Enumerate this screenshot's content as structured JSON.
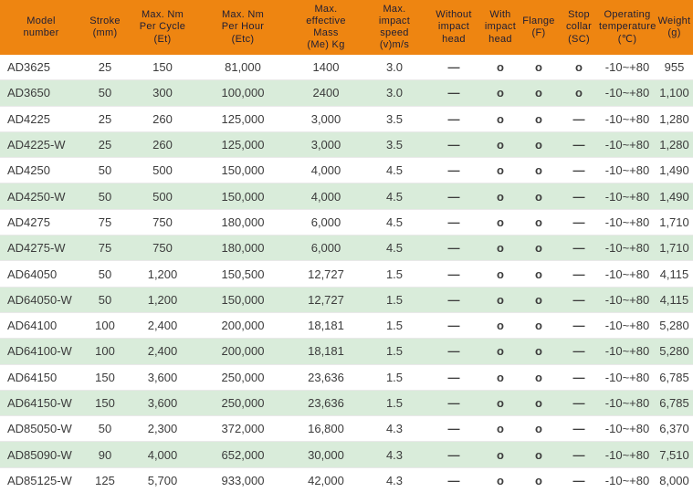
{
  "table": {
    "colors": {
      "header_bg": "#ee8511",
      "header_text": "#1d1d35",
      "row_alt_bg": "#d9ecda",
      "body_text": "#3c3c3c"
    },
    "columns": [
      {
        "id": "model",
        "label": "Model\nnumber"
      },
      {
        "id": "stroke",
        "label": "Stroke\n(mm)"
      },
      {
        "id": "cycle",
        "label": "Max. Nm\nPer Cycle\n(Et)"
      },
      {
        "id": "hour",
        "label": "Max. Nm\nPer Hour\n(Etc)"
      },
      {
        "id": "mass",
        "label": "Max.\neffective\nMass\n(Me) Kg"
      },
      {
        "id": "speed",
        "label": "Max.\nimpact\nspeed\n(v)m/s"
      },
      {
        "id": "without",
        "label": "Without\nimpact\nhead"
      },
      {
        "id": "with",
        "label": "With\nimpact\nhead"
      },
      {
        "id": "flange",
        "label": "Flange\n(F)"
      },
      {
        "id": "stop",
        "label": "Stop\ncollar\n(SC)"
      },
      {
        "id": "temp",
        "label": "Operating\ntemperature\n(℃)"
      },
      {
        "id": "weight",
        "label": "Weight\n(g)"
      }
    ],
    "rows": [
      {
        "model": "AD3625",
        "stroke": "25",
        "cycle": "150",
        "hour": "81,000",
        "mass": "1400",
        "speed": "3.0",
        "without": "—",
        "with": "o",
        "flange": "o",
        "stop": "o",
        "temp": "-10~+80",
        "weight": "955"
      },
      {
        "model": "AD3650",
        "stroke": "50",
        "cycle": "300",
        "hour": "100,000",
        "mass": "2400",
        "speed": "3.0",
        "without": "—",
        "with": "o",
        "flange": "o",
        "stop": "o",
        "temp": "-10~+80",
        "weight": "1,100"
      },
      {
        "model": "AD4225",
        "stroke": "25",
        "cycle": "260",
        "hour": "125,000",
        "mass": "3,000",
        "speed": "3.5",
        "without": "—",
        "with": "o",
        "flange": "o",
        "stop": "—",
        "temp": "-10~+80",
        "weight": "1,280"
      },
      {
        "model": "AD4225-W",
        "stroke": "25",
        "cycle": "260",
        "hour": "125,000",
        "mass": "3,000",
        "speed": "3.5",
        "without": "—",
        "with": "o",
        "flange": "o",
        "stop": "—",
        "temp": "-10~+80",
        "weight": "1,280"
      },
      {
        "model": "AD4250",
        "stroke": "50",
        "cycle": "500",
        "hour": "150,000",
        "mass": "4,000",
        "speed": "4.5",
        "without": "—",
        "with": "o",
        "flange": "o",
        "stop": "—",
        "temp": "-10~+80",
        "weight": "1,490"
      },
      {
        "model": "AD4250-W",
        "stroke": "50",
        "cycle": "500",
        "hour": "150,000",
        "mass": "4,000",
        "speed": "4.5",
        "without": "—",
        "with": "o",
        "flange": "o",
        "stop": "—",
        "temp": "-10~+80",
        "weight": "1,490"
      },
      {
        "model": "AD4275",
        "stroke": "75",
        "cycle": "750",
        "hour": "180,000",
        "mass": "6,000",
        "speed": "4.5",
        "without": "—",
        "with": "o",
        "flange": "o",
        "stop": "—",
        "temp": "-10~+80",
        "weight": "1,710"
      },
      {
        "model": "AD4275-W",
        "stroke": "75",
        "cycle": "750",
        "hour": "180,000",
        "mass": "6,000",
        "speed": "4.5",
        "without": "—",
        "with": "o",
        "flange": "o",
        "stop": "—",
        "temp": "-10~+80",
        "weight": "1,710"
      },
      {
        "model": "AD64050",
        "stroke": "50",
        "cycle": "1,200",
        "hour": "150,500",
        "mass": "12,727",
        "speed": "1.5",
        "without": "—",
        "with": "o",
        "flange": "o",
        "stop": "—",
        "temp": "-10~+80",
        "weight": "4,115"
      },
      {
        "model": "AD64050-W",
        "stroke": "50",
        "cycle": "1,200",
        "hour": "150,000",
        "mass": "12,727",
        "speed": "1.5",
        "without": "—",
        "with": "o",
        "flange": "o",
        "stop": "—",
        "temp": "-10~+80",
        "weight": "4,115"
      },
      {
        "model": "AD64100",
        "stroke": "100",
        "cycle": "2,400",
        "hour": "200,000",
        "mass": "18,181",
        "speed": "1.5",
        "without": "—",
        "with": "o",
        "flange": "o",
        "stop": "—",
        "temp": "-10~+80",
        "weight": "5,280"
      },
      {
        "model": "AD64100-W",
        "stroke": "100",
        "cycle": "2,400",
        "hour": "200,000",
        "mass": "18,181",
        "speed": "1.5",
        "without": "—",
        "with": "o",
        "flange": "o",
        "stop": "—",
        "temp": "-10~+80",
        "weight": "5,280"
      },
      {
        "model": "AD64150",
        "stroke": "150",
        "cycle": "3,600",
        "hour": "250,000",
        "mass": "23,636",
        "speed": "1.5",
        "without": "—",
        "with": "o",
        "flange": "o",
        "stop": "—",
        "temp": "-10~+80",
        "weight": "6,785"
      },
      {
        "model": "AD64150-W",
        "stroke": "150",
        "cycle": "3,600",
        "hour": "250,000",
        "mass": "23,636",
        "speed": "1.5",
        "without": "—",
        "with": "o",
        "flange": "o",
        "stop": "—",
        "temp": "-10~+80",
        "weight": "6,785"
      },
      {
        "model": "AD85050-W",
        "stroke": "50",
        "cycle": "2,300",
        "hour": "372,000",
        "mass": "16,800",
        "speed": "4.3",
        "without": "—",
        "with": "o",
        "flange": "o",
        "stop": "—",
        "temp": "-10~+80",
        "weight": "6,370"
      },
      {
        "model": "AD85090-W",
        "stroke": "90",
        "cycle": "4,000",
        "hour": "652,000",
        "mass": "30,000",
        "speed": "4.3",
        "without": "—",
        "with": "o",
        "flange": "o",
        "stop": "—",
        "temp": "-10~+80",
        "weight": "7,510"
      },
      {
        "model": "AD85125-W",
        "stroke": "125",
        "cycle": "5,700",
        "hour": "933,000",
        "mass": "42,000",
        "speed": "4.3",
        "without": "—",
        "with": "o",
        "flange": "o",
        "stop": "—",
        "temp": "-10~+80",
        "weight": "8,000"
      }
    ]
  }
}
